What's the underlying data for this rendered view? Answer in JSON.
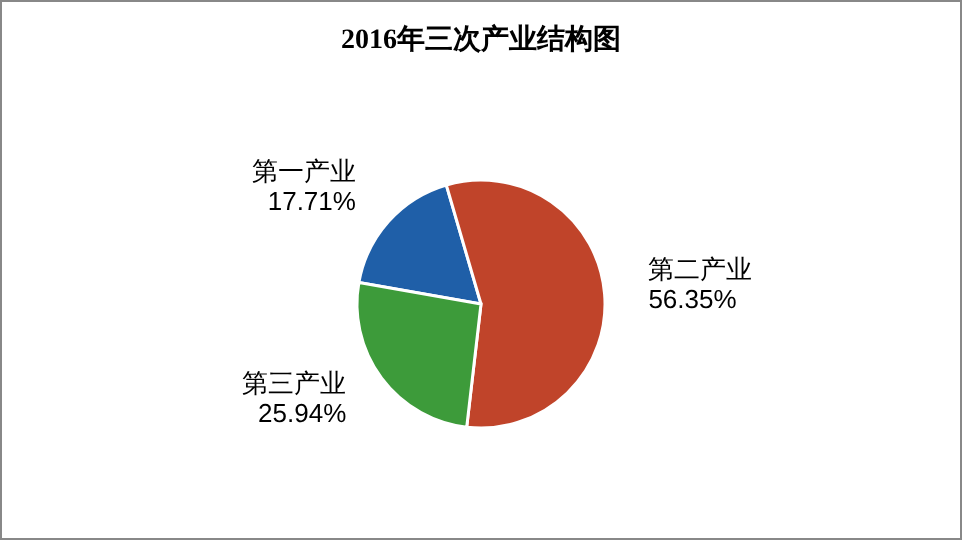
{
  "chart_data": {
    "type": "pie",
    "title": "2016年三次产业结构图",
    "categories": [
      "第一产业",
      "第二产业",
      "第三产业"
    ],
    "values": [
      17.71,
      56.35,
      25.94
    ],
    "value_labels": [
      "17.71%",
      "56.35%",
      "25.94%"
    ],
    "colors": [
      "#1f5fa8",
      "#c0442a",
      "#3d9b3a"
    ]
  }
}
